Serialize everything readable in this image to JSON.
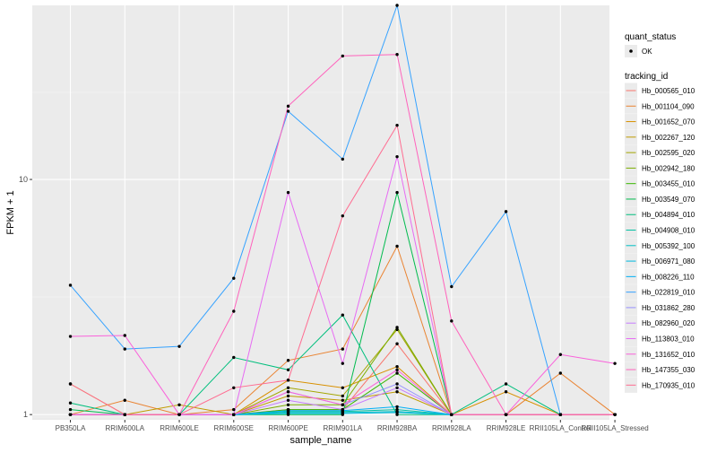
{
  "chart_data": {
    "type": "line",
    "title": "",
    "xlabel": "sample_name",
    "ylabel": "FPKM + 1",
    "y_scale": "log10",
    "ylim": [
      0.95,
      55
    ],
    "y_ticks": [
      1,
      10
    ],
    "y_tick_labels": [
      "1",
      "10"
    ],
    "grid": true,
    "legend_position": "right",
    "categories": [
      "PB350LA",
      "RRIM600LA",
      "RRIM600LE",
      "RRIM600SE",
      "RRIM600PE",
      "RRIM901LA",
      "RRIM928BA",
      "RRIM928LA",
      "RRIM928LE",
      "RRII105LA_Control",
      "RRII105LA_Stressed"
    ],
    "x_tick_labels": [
      "PB350LA",
      "RRIM600LA",
      "RRIM600LE",
      "RRIM600SE",
      "RRIM600PE",
      "RRIM901LA",
      "RRIM928BA",
      "RRIM928LA",
      "RRIM928LE",
      "RRII105LA_Control",
      "RRII105LA_Stressed"
    ],
    "legend_quant": {
      "title": "quant_status",
      "items": [
        "OK"
      ]
    },
    "legend_tracking": {
      "title": "tracking_id"
    },
    "series": [
      {
        "name": "Hb_000565_010",
        "color": "#F8766D",
        "values": [
          1,
          1,
          1,
          1,
          1.05,
          1.05,
          2.0,
          1,
          1,
          1,
          1
        ]
      },
      {
        "name": "Hb_001104_090",
        "color": "#EA8331",
        "values": [
          1,
          1.15,
          1,
          1.05,
          1.7,
          1.9,
          5.2,
          1,
          1,
          1.5,
          1
        ]
      },
      {
        "name": "Hb_001652_070",
        "color": "#D89000",
        "values": [
          1.35,
          1,
          1,
          1,
          1.4,
          1.3,
          1.6,
          1,
          1.25,
          1,
          1
        ]
      },
      {
        "name": "Hb_002267_120",
        "color": "#C09B00",
        "values": [
          1,
          1,
          1.1,
          1,
          1.2,
          1.15,
          1.25,
          1,
          1,
          1,
          1
        ]
      },
      {
        "name": "Hb_002595_020",
        "color": "#A3A500",
        "values": [
          1,
          1,
          1,
          1,
          1.3,
          1.2,
          2.3,
          1,
          1,
          1,
          1
        ]
      },
      {
        "name": "Hb_002942_180",
        "color": "#7CAE00",
        "values": [
          1,
          1,
          1,
          1,
          1.1,
          1.1,
          2.35,
          1,
          1,
          1,
          1
        ]
      },
      {
        "name": "Hb_003455_010",
        "color": "#39B600",
        "values": [
          1,
          1,
          1,
          1,
          1.05,
          1.05,
          1.5,
          1,
          1,
          1,
          1
        ]
      },
      {
        "name": "Hb_003549_070",
        "color": "#00BB4E",
        "values": [
          1.05,
          1,
          1,
          1,
          1.0,
          1.0,
          8.8,
          1,
          1,
          1,
          1
        ]
      },
      {
        "name": "Hb_004894_010",
        "color": "#00BF7D",
        "values": [
          1.12,
          1,
          1,
          1.75,
          1.55,
          2.65,
          1.0,
          1,
          1.35,
          1,
          1
        ]
      },
      {
        "name": "Hb_004908_010",
        "color": "#00C1A3",
        "values": [
          1,
          1,
          1,
          1,
          1.03,
          1.03,
          1.05,
          1,
          1,
          1,
          1
        ]
      },
      {
        "name": "Hb_005392_100",
        "color": "#00BFC4",
        "values": [
          1,
          1,
          1,
          1,
          1.02,
          1.02,
          1.03,
          1,
          1,
          1,
          1
        ]
      },
      {
        "name": "Hb_006971_080",
        "color": "#00BAE0",
        "values": [
          1,
          1,
          1,
          1,
          1.01,
          1.01,
          1.02,
          1,
          1,
          1,
          1
        ]
      },
      {
        "name": "Hb_008226_110",
        "color": "#00B0F6",
        "values": [
          1,
          1,
          1,
          1,
          1.04,
          1.04,
          1.08,
          1,
          1,
          1,
          1
        ]
      },
      {
        "name": "Hb_022819_010",
        "color": "#35A2FF",
        "values": [
          3.55,
          1.9,
          1.95,
          3.8,
          19.5,
          12.2,
          55,
          3.5,
          7.3,
          1,
          1
        ]
      },
      {
        "name": "Hb_031862_280",
        "color": "#9590FF",
        "values": [
          1,
          1,
          1,
          1,
          1.25,
          1.1,
          1.35,
          1,
          1,
          1,
          1
        ]
      },
      {
        "name": "Hb_082960_020",
        "color": "#C77CFF",
        "values": [
          1,
          1,
          1,
          1,
          1.15,
          1.05,
          1.3,
          1,
          1,
          1,
          1
        ]
      },
      {
        "name": "Hb_113803_010",
        "color": "#E76BF3",
        "values": [
          1,
          1,
          1,
          1,
          8.8,
          1.65,
          12.5,
          1,
          1,
          1,
          1
        ]
      },
      {
        "name": "Hb_131652_010",
        "color": "#FA62DB",
        "values": [
          2.15,
          2.17,
          1,
          1,
          1.25,
          1.1,
          1.55,
          1,
          1,
          1.8,
          1.65
        ]
      },
      {
        "name": "Hb_147355_030",
        "color": "#FF62BC",
        "values": [
          1,
          1,
          1,
          2.75,
          20.5,
          33.5,
          34,
          2.5,
          1,
          1,
          1
        ]
      },
      {
        "name": "Hb_170935_010",
        "color": "#FF6C91",
        "values": [
          1.35,
          1,
          1,
          1.3,
          1.4,
          7.0,
          17.0,
          1,
          1,
          1,
          1
        ]
      }
    ]
  }
}
